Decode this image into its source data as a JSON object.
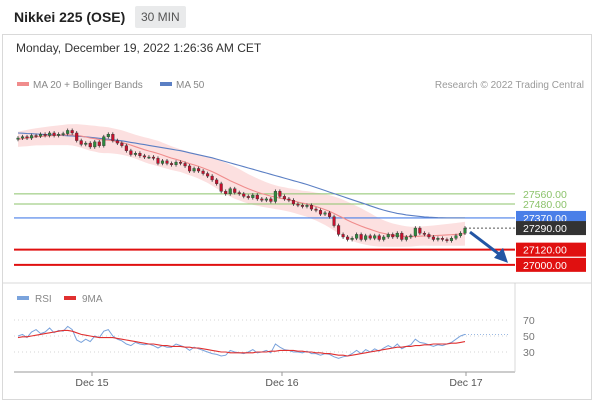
{
  "header": {
    "title": "Nikkei 225 (OSE)",
    "timeframe": "30 MIN",
    "timestamp": "Monday, December 19, 2022 1:26:36 AM CET"
  },
  "legend": {
    "ma20": "MA 20 + Bollinger Bands",
    "ma50": "MA 50",
    "credit": "Research © 2022 Trading Central",
    "rsi": "RSI",
    "rsi_ma": "9MA"
  },
  "colors": {
    "ma20": "#f08c8c",
    "band": "#fbd5d5",
    "ma50": "#5b7fc4",
    "resistance": "#8cc36b",
    "pivot": "#4a7fe8",
    "support": "#e01010",
    "candle_up": "#2e8b3e",
    "candle_down": "#c8102e",
    "arrow": "#2255a4",
    "rsi": "#7aa3dc",
    "rsi_ma": "#e03030"
  },
  "chart_data": [
    {
      "type": "candlestick",
      "title": "Nikkei 225 (OSE)",
      "timeframe": "30 MIN",
      "x_ticks": [
        "Dec 15",
        "Dec 16",
        "Dec 17"
      ],
      "levels": [
        {
          "value": 27560.0,
          "label": "27560.00",
          "kind": "resistance"
        },
        {
          "value": 27480.0,
          "label": "27480.00",
          "kind": "resistance"
        },
        {
          "value": 27370.0,
          "label": "27370.00",
          "kind": "pivot"
        },
        {
          "value": 27290.0,
          "label": "27290.00",
          "kind": "last"
        },
        {
          "value": 27120.0,
          "label": "27120.00",
          "kind": "support"
        },
        {
          "value": 27000.0,
          "label": "27000.00",
          "kind": "support"
        }
      ],
      "ylim": [
        26920,
        28300
      ],
      "close": [
        28000,
        28010,
        28000,
        28020,
        28015,
        28030,
        28020,
        28040,
        28020,
        28030,
        28035,
        28060,
        28040,
        27980,
        27950,
        27960,
        27930,
        27970,
        27940,
        28010,
        28030,
        27980,
        27960,
        27940,
        27900,
        27870,
        27880,
        27860,
        27850,
        27850,
        27840,
        27800,
        27820,
        27800,
        27790,
        27810,
        27800,
        27780,
        27740,
        27760,
        27740,
        27720,
        27700,
        27670,
        27640,
        27580,
        27560,
        27600,
        27570,
        27560,
        27540,
        27530,
        27550,
        27520,
        27510,
        27520,
        27500,
        27580,
        27540,
        27520,
        27510,
        27480,
        27470,
        27460,
        27470,
        27440,
        27430,
        27400,
        27410,
        27380,
        27310,
        27240,
        27220,
        27200,
        27210,
        27240,
        27200,
        27230,
        27210,
        27230,
        27200,
        27220,
        27240,
        27220,
        27250,
        27200,
        27220,
        27230,
        27290,
        27250,
        27240,
        27220,
        27200,
        27210,
        27200,
        27190,
        27210,
        27230,
        27250,
        27290
      ],
      "ma20": [
        27990,
        27995,
        28000,
        28005,
        28010,
        28012,
        28015,
        28018,
        28020,
        28022,
        28024,
        28026,
        28025,
        28022,
        28015,
        28008,
        28000,
        27995,
        27988,
        27985,
        27983,
        27978,
        27972,
        27965,
        27955,
        27944,
        27932,
        27920,
        27908,
        27898,
        27888,
        27878,
        27866,
        27854,
        27842,
        27832,
        27822,
        27810,
        27798,
        27788,
        27776,
        27764,
        27750,
        27735,
        27718,
        27700,
        27682,
        27664,
        27648,
        27632,
        27615,
        27600,
        27586,
        27574,
        27562,
        27552,
        27542,
        27534,
        27526,
        27520,
        27512,
        27505,
        27496,
        27487,
        27480,
        27470,
        27460,
        27448,
        27436,
        27422,
        27405,
        27388,
        27370,
        27352,
        27335,
        27320,
        27306,
        27292,
        27280,
        27268,
        27256,
        27248,
        27240,
        27234,
        27230,
        27226,
        27224,
        27222,
        27224,
        27226,
        27228,
        27229,
        27230,
        27232,
        27234,
        27236,
        27238,
        27240,
        27243,
        27246
      ],
      "bb_width": [
        60,
        62,
        64,
        66,
        68,
        70,
        72,
        74,
        76,
        78,
        80,
        82,
        84,
        88,
        92,
        96,
        100,
        102,
        104,
        104,
        102,
        100,
        98,
        96,
        94,
        94,
        94,
        96,
        98,
        100,
        100,
        100,
        98,
        96,
        94,
        92,
        90,
        90,
        92,
        94,
        96,
        100,
        104,
        110,
        116,
        120,
        124,
        126,
        126,
        124,
        120,
        116,
        112,
        108,
        104,
        100,
        96,
        94,
        92,
        92,
        92,
        94,
        96,
        98,
        102,
        106,
        110,
        116,
        122,
        128,
        134,
        140,
        144,
        146,
        146,
        144,
        140,
        134,
        128,
        120,
        112,
        104,
        98,
        92,
        88,
        84,
        80,
        78,
        76,
        76,
        76,
        78,
        80,
        82,
        84,
        86,
        88,
        90,
        92,
        94
      ],
      "ma50": [
        28040,
        28038,
        28036,
        28034,
        28032,
        28030,
        28028,
        28026,
        28024,
        28022,
        28020,
        28018,
        28016,
        28014,
        28012,
        28010,
        28006,
        28002,
        27998,
        27994,
        27990,
        27986,
        27982,
        27978,
        27972,
        27966,
        27960,
        27954,
        27948,
        27942,
        27936,
        27930,
        27924,
        27918,
        27912,
        27906,
        27900,
        27892,
        27884,
        27876,
        27868,
        27860,
        27852,
        27844,
        27834,
        27824,
        27814,
        27804,
        27794,
        27784,
        27774,
        27764,
        27754,
        27744,
        27734,
        27724,
        27714,
        27704,
        27694,
        27684,
        27674,
        27664,
        27654,
        27644,
        27634,
        27622,
        27610,
        27598,
        27586,
        27574,
        27562,
        27550,
        27538,
        27526,
        27514,
        27502,
        27490,
        27478,
        27466,
        27454,
        27442,
        27432,
        27422,
        27414,
        27406,
        27400,
        27394,
        27390,
        27386,
        27382,
        27378,
        27376,
        27374,
        27372,
        27371,
        27370,
        27370,
        27370,
        27370,
        27370
      ]
    },
    {
      "type": "line",
      "title": "RSI",
      "y_ticks": [
        70,
        50,
        30
      ],
      "ylim": [
        10,
        80
      ],
      "series": [
        {
          "name": "RSI",
          "values": [
            50,
            52,
            48,
            55,
            58,
            53,
            55,
            60,
            54,
            57,
            56,
            62,
            58,
            45,
            42,
            46,
            43,
            50,
            48,
            56,
            58,
            50,
            46,
            44,
            40,
            38,
            42,
            40,
            39,
            40,
            38,
            35,
            38,
            36,
            36,
            40,
            38,
            36,
            32,
            36,
            34,
            32,
            30,
            28,
            27,
            25,
            26,
            32,
            30,
            29,
            28,
            30,
            33,
            29,
            30,
            32,
            29,
            40,
            36,
            33,
            32,
            30,
            30,
            29,
            31,
            28,
            28,
            26,
            28,
            27,
            24,
            22,
            24,
            25,
            28,
            32,
            28,
            33,
            30,
            34,
            31,
            35,
            38,
            35,
            40,
            34,
            37,
            39,
            46,
            42,
            41,
            39,
            37,
            39,
            38,
            40,
            42,
            46,
            50,
            52
          ]
        },
        {
          "name": "9MA",
          "values": [
            48,
            49,
            49,
            50,
            51,
            52,
            53,
            54,
            55,
            56,
            57,
            57,
            56,
            54,
            52,
            51,
            50,
            49,
            48,
            48,
            48,
            48,
            47,
            46,
            45,
            44,
            43,
            42,
            41,
            40,
            40,
            39,
            38,
            38,
            37,
            37,
            37,
            36,
            36,
            35,
            35,
            34,
            33,
            32,
            31,
            30,
            30,
            29,
            29,
            29,
            29,
            29,
            29,
            30,
            30,
            30,
            31,
            31,
            32,
            32,
            32,
            32,
            31,
            31,
            30,
            30,
            29,
            29,
            28,
            28,
            27,
            26,
            26,
            25,
            26,
            27,
            28,
            29,
            30,
            31,
            32,
            33,
            34,
            35,
            36,
            36,
            37,
            37,
            38,
            38,
            39,
            39,
            40,
            40,
            40,
            40,
            41,
            41,
            42,
            43
          ]
        }
      ]
    }
  ]
}
